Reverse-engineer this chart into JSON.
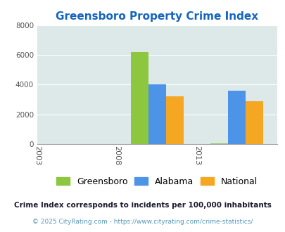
{
  "title": "Greensboro Property Crime Index",
  "title_color": "#1565c0",
  "plot_bg_color": "#dde8e8",
  "fig_bg_color": "#ffffff",
  "greensboro": [
    0,
    6200,
    50
  ],
  "alabama": [
    0,
    4000,
    3600
  ],
  "national": [
    0,
    3200,
    2900
  ],
  "bar_colors": {
    "greensboro": "#8dc63f",
    "alabama": "#4d94e8",
    "national": "#f5a623"
  },
  "ylim": [
    0,
    8000
  ],
  "yticks": [
    0,
    2000,
    4000,
    6000,
    8000
  ],
  "legend_labels": [
    "Greensboro",
    "Alabama",
    "National"
  ],
  "footnote1": "Crime Index corresponds to incidents per 100,000 inhabitants",
  "footnote2": "© 2025 CityRating.com - https://www.cityrating.com/crime-statistics/",
  "footnote1_color": "#1a1a2e",
  "footnote2_color": "#5599bb",
  "xtick_labels": [
    "2003",
    "2008",
    "2013"
  ],
  "bar_width": 0.22,
  "group_centers": [
    0.5,
    1.5,
    2.5
  ],
  "xtick_positions": [
    0,
    1,
    2,
    3
  ]
}
